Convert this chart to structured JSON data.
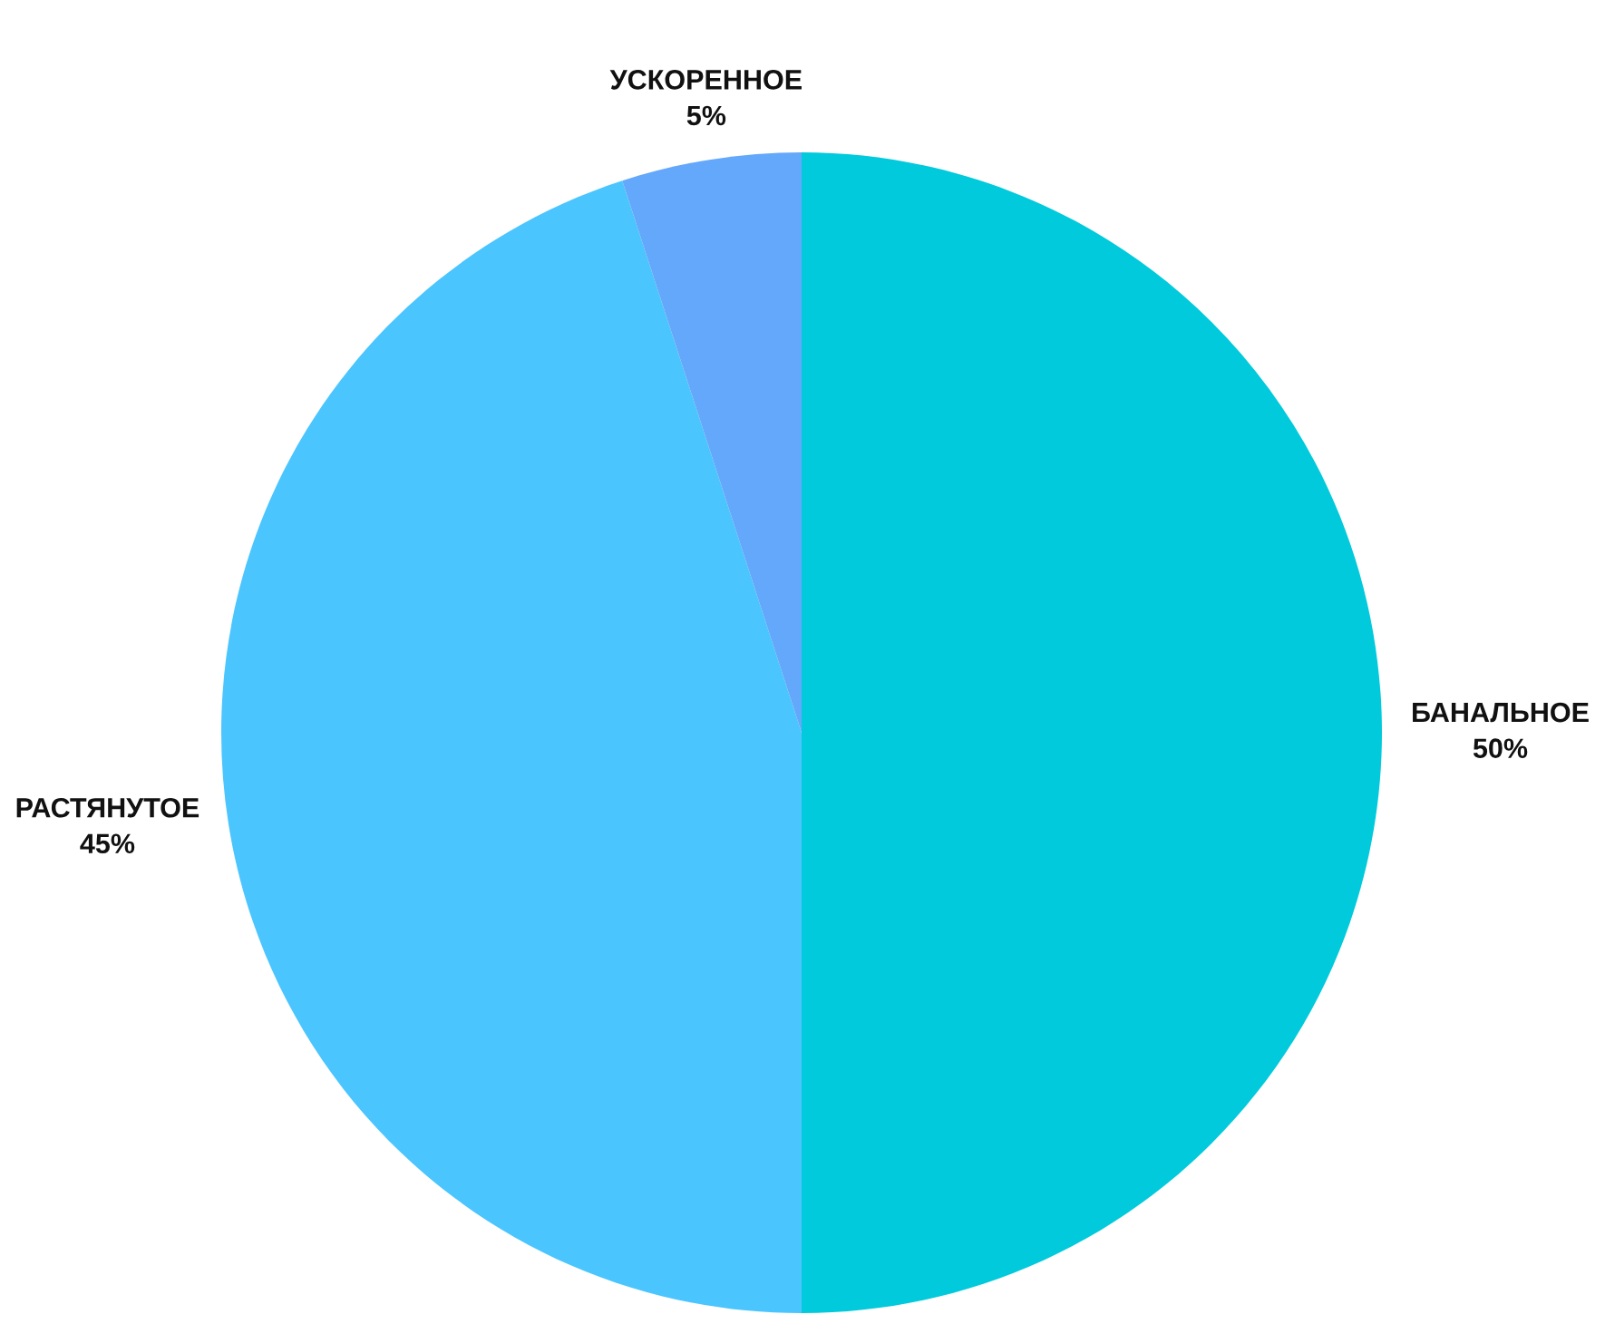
{
  "chart_data": {
    "type": "pie",
    "categories": [
      "БАНАЛЬНОЕ",
      "РАСТЯНУТОЕ",
      "УСКОРЕННОЕ"
    ],
    "values": [
      50,
      45,
      5
    ],
    "value_labels": [
      "50%",
      "45%",
      "5%"
    ],
    "colors": [
      "#00cadc",
      "#4bc5fe",
      "#63a8fb"
    ]
  }
}
